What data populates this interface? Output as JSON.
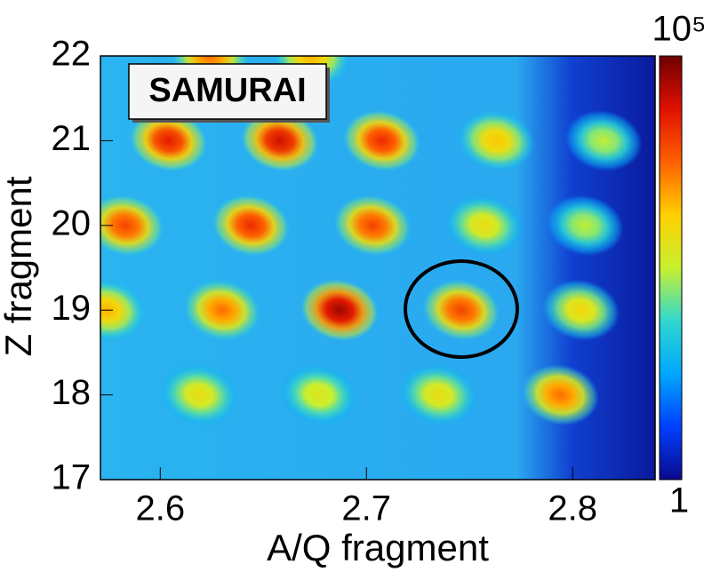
{
  "chart_data": {
    "type": "heatmap",
    "annotation": "SAMURAI",
    "xlabel": "A/Q fragment",
    "ylabel": "Z fragment",
    "xlim": [
      2.571,
      2.84
    ],
    "xticks": [
      2.6,
      2.7,
      2.8
    ],
    "ylim": [
      17,
      22
    ],
    "yticks": [
      17,
      18,
      19,
      20,
      21,
      22
    ],
    "zlim": [
      1,
      100000
    ],
    "zticks": [
      1,
      {
        "value": 100000,
        "label": "10⁵"
      }
    ],
    "zlog": true,
    "colorscale": [
      "#0a0a8c",
      "#0040ff",
      "#00a8ff",
      "#30d8d0",
      "#c8f030",
      "#ffd000",
      "#ff6000",
      "#e01000",
      "#700000"
    ],
    "x": [
      2.624,
      2.673,
      2.604,
      2.658,
      2.7075,
      2.763,
      2.815,
      2.583,
      2.644,
      2.703,
      2.757,
      2.806,
      2.574,
      2.63,
      2.687,
      2.746,
      2.804,
      2.619,
      2.677,
      2.735,
      2.794
    ],
    "y": [
      22,
      22,
      21,
      21,
      21,
      21,
      21,
      20,
      20,
      20,
      20,
      20,
      19,
      19,
      19,
      19,
      19,
      18,
      18,
      18,
      18
    ],
    "z": [
      5000,
      2000,
      20000,
      30000,
      15000,
      1500,
      300,
      10000,
      15000,
      10000,
      800,
      300,
      2000,
      5000,
      60000,
      10000,
      1000,
      800,
      600,
      800,
      5000
    ]
  }
}
